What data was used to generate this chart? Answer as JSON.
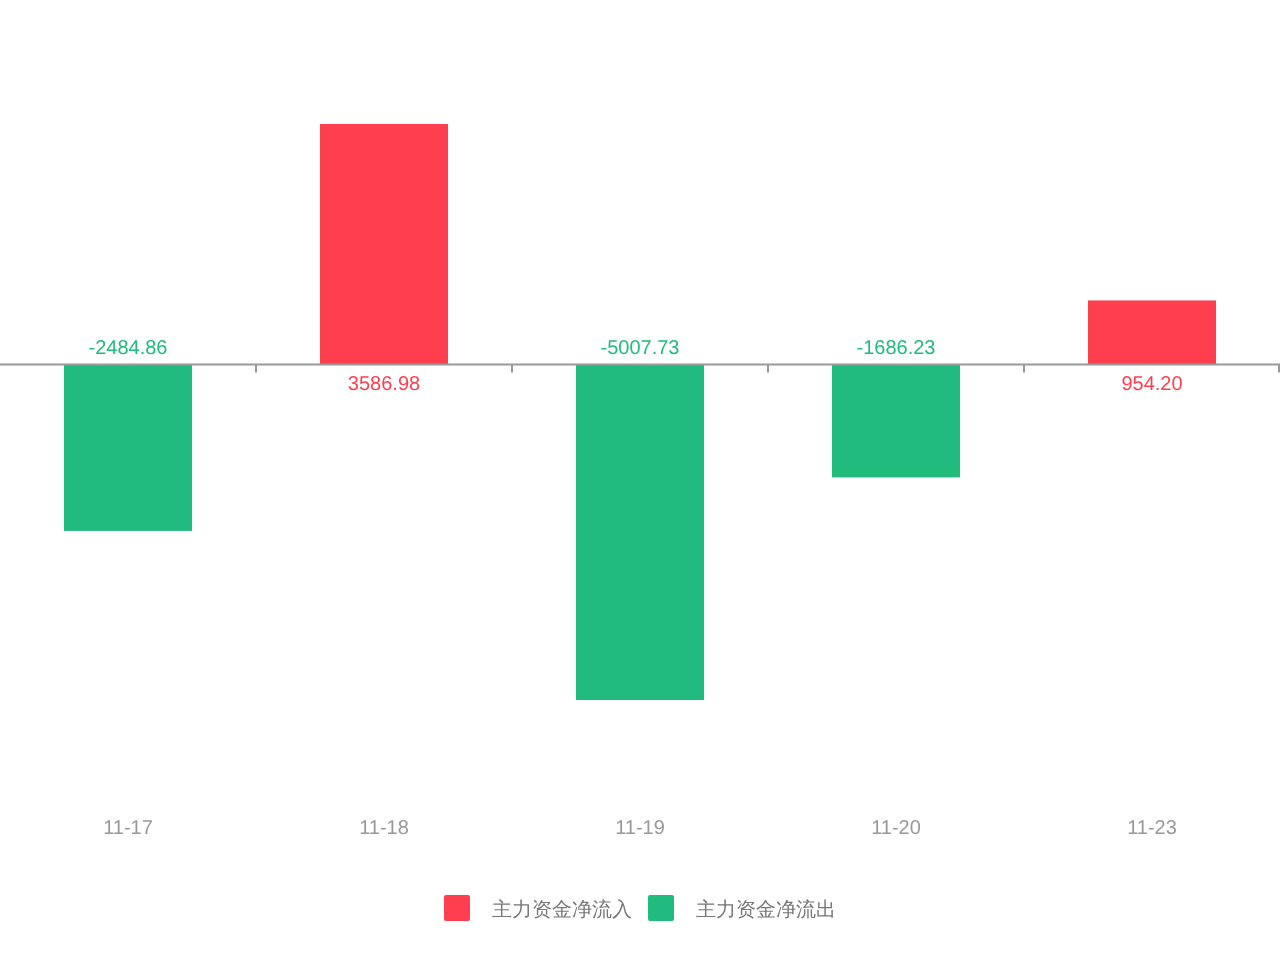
{
  "chart_data": {
    "type": "bar",
    "categories": [
      "11-17",
      "11-18",
      "11-19",
      "11-20",
      "11-23"
    ],
    "series": [
      {
        "name": "主力资金净流入",
        "color": "#ff3f4f",
        "values": [
          null,
          3586.98,
          null,
          null,
          954.2
        ],
        "value_labels": [
          null,
          "3586.98",
          null,
          null,
          "954.20"
        ]
      },
      {
        "name": "主力资金净流出",
        "color": "#22bb7e",
        "values": [
          -2484.86,
          null,
          -5007.73,
          -1686.23,
          null
        ],
        "value_labels": [
          "-2484.86",
          null,
          "-5007.73",
          "-1686.23",
          null
        ]
      }
    ],
    "stacked": true,
    "tick_labels": "x",
    "legend": "bottom"
  }
}
